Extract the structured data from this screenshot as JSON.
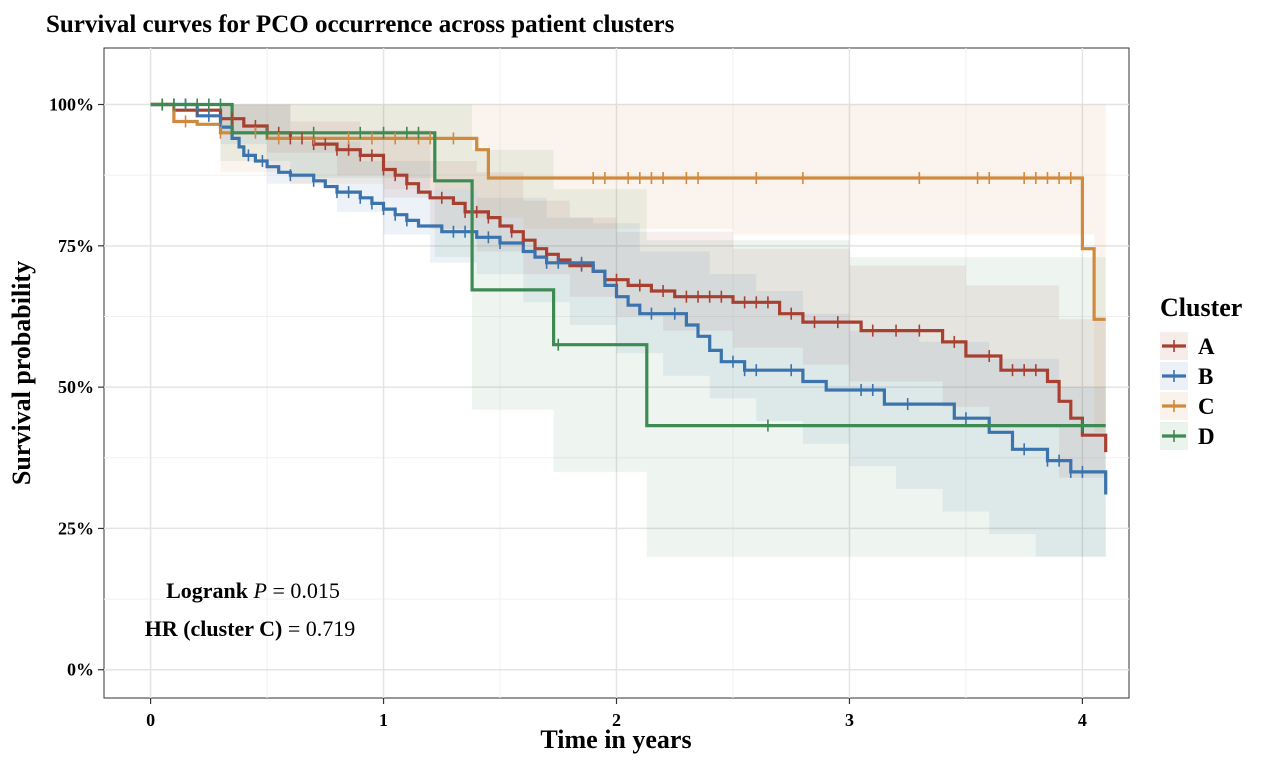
{
  "chart_data": {
    "type": "line",
    "subtype": "kaplan-meier step",
    "title": "Survival curves for PCO occurrence across patient clusters",
    "xlabel": "Time in years",
    "ylabel": "Survival probability",
    "xlim": [
      -0.2,
      4.2
    ],
    "ylim": [
      -0.05,
      1.1
    ],
    "x_ticks": [
      0,
      1,
      2,
      3,
      4
    ],
    "x_tick_labels": [
      "0",
      "1",
      "2",
      "3",
      "4"
    ],
    "y_ticks": [
      0,
      0.25,
      0.5,
      0.75,
      1.0
    ],
    "y_tick_labels": [
      "0%",
      "25%",
      "50%",
      "75%",
      "100%"
    ],
    "grid": true,
    "legend": {
      "title": "Cluster",
      "position": "right"
    },
    "annotations": {
      "logrank_prefix": "Logrank ",
      "logrank_p": "P",
      "logrank_value": " = 0.015",
      "hr_prefix": "HR (cluster C)",
      "hr_value": " = 0.719"
    },
    "series": [
      {
        "name": "A",
        "color": "#a84032",
        "steps": [
          [
            0,
            1.0
          ],
          [
            0.1,
            0.99
          ],
          [
            0.3,
            0.975
          ],
          [
            0.4,
            0.962
          ],
          [
            0.5,
            0.95
          ],
          [
            0.6,
            0.94
          ],
          [
            0.7,
            0.93
          ],
          [
            0.8,
            0.92
          ],
          [
            0.9,
            0.91
          ],
          [
            1.0,
            0.885
          ],
          [
            1.05,
            0.875
          ],
          [
            1.1,
            0.86
          ],
          [
            1.15,
            0.845
          ],
          [
            1.2,
            0.835
          ],
          [
            1.3,
            0.825
          ],
          [
            1.35,
            0.81
          ],
          [
            1.45,
            0.8
          ],
          [
            1.5,
            0.785
          ],
          [
            1.55,
            0.775
          ],
          [
            1.6,
            0.76
          ],
          [
            1.65,
            0.745
          ],
          [
            1.7,
            0.735
          ],
          [
            1.75,
            0.725
          ],
          [
            1.8,
            0.715
          ],
          [
            1.9,
            0.705
          ],
          [
            1.95,
            0.69
          ],
          [
            2.05,
            0.68
          ],
          [
            2.15,
            0.67
          ],
          [
            2.25,
            0.66
          ],
          [
            2.5,
            0.65
          ],
          [
            2.7,
            0.63
          ],
          [
            2.8,
            0.615
          ],
          [
            3.05,
            0.6
          ],
          [
            3.4,
            0.58
          ],
          [
            3.5,
            0.555
          ],
          [
            3.65,
            0.53
          ],
          [
            3.85,
            0.51
          ],
          [
            3.9,
            0.475
          ],
          [
            3.95,
            0.445
          ],
          [
            4.0,
            0.415
          ],
          [
            4.1,
            0.385
          ]
        ],
        "band_lower": [
          [
            0,
            1.0
          ],
          [
            0.3,
            0.95
          ],
          [
            0.5,
            0.915
          ],
          [
            0.8,
            0.875
          ],
          [
            1.0,
            0.835
          ],
          [
            1.2,
            0.78
          ],
          [
            1.4,
            0.74
          ],
          [
            1.6,
            0.7
          ],
          [
            1.8,
            0.66
          ],
          [
            2.0,
            0.625
          ],
          [
            2.2,
            0.6
          ],
          [
            2.5,
            0.57
          ],
          [
            2.8,
            0.54
          ],
          [
            3.0,
            0.51
          ],
          [
            3.4,
            0.465
          ],
          [
            3.6,
            0.43
          ],
          [
            3.9,
            0.34
          ],
          [
            4.1,
            0.28
          ]
        ],
        "band_upper": [
          [
            0,
            1.0
          ],
          [
            0.3,
            1.0
          ],
          [
            0.6,
            0.97
          ],
          [
            0.9,
            0.955
          ],
          [
            1.2,
            0.9
          ],
          [
            1.4,
            0.88
          ],
          [
            1.6,
            0.83
          ],
          [
            1.8,
            0.8
          ],
          [
            2.0,
            0.775
          ],
          [
            2.5,
            0.745
          ],
          [
            3.0,
            0.715
          ],
          [
            3.5,
            0.68
          ],
          [
            3.9,
            0.62
          ],
          [
            4.1,
            0.55
          ]
        ],
        "censor_times": [
          0.05,
          0.2,
          0.35,
          0.45,
          0.55,
          0.6,
          0.65,
          0.7,
          0.75,
          0.8,
          0.85,
          0.9,
          0.95,
          1.0,
          1.05,
          1.1,
          1.25,
          1.35,
          1.4,
          1.45,
          1.55,
          1.6,
          1.7,
          1.85,
          2.0,
          2.1,
          2.2,
          2.3,
          2.35,
          2.4,
          2.45,
          2.55,
          2.6,
          2.65,
          2.75,
          2.85,
          2.95,
          3.1,
          3.2,
          3.3,
          3.45,
          3.6,
          3.7,
          3.75,
          3.8
        ]
      },
      {
        "name": "B",
        "color": "#3a73ad",
        "steps": [
          [
            0,
            1.0
          ],
          [
            0.2,
            0.98
          ],
          [
            0.3,
            0.96
          ],
          [
            0.35,
            0.94
          ],
          [
            0.38,
            0.925
          ],
          [
            0.4,
            0.91
          ],
          [
            0.45,
            0.9
          ],
          [
            0.5,
            0.89
          ],
          [
            0.55,
            0.88
          ],
          [
            0.6,
            0.875
          ],
          [
            0.7,
            0.865
          ],
          [
            0.75,
            0.855
          ],
          [
            0.8,
            0.845
          ],
          [
            0.9,
            0.835
          ],
          [
            0.95,
            0.825
          ],
          [
            1.0,
            0.815
          ],
          [
            1.05,
            0.805
          ],
          [
            1.1,
            0.795
          ],
          [
            1.15,
            0.785
          ],
          [
            1.25,
            0.775
          ],
          [
            1.4,
            0.765
          ],
          [
            1.5,
            0.755
          ],
          [
            1.6,
            0.74
          ],
          [
            1.65,
            0.73
          ],
          [
            1.7,
            0.72
          ],
          [
            1.9,
            0.705
          ],
          [
            1.95,
            0.68
          ],
          [
            2.0,
            0.66
          ],
          [
            2.05,
            0.645
          ],
          [
            2.1,
            0.63
          ],
          [
            2.3,
            0.61
          ],
          [
            2.35,
            0.59
          ],
          [
            2.4,
            0.565
          ],
          [
            2.45,
            0.545
          ],
          [
            2.55,
            0.53
          ],
          [
            2.8,
            0.51
          ],
          [
            2.9,
            0.495
          ],
          [
            3.15,
            0.47
          ],
          [
            3.45,
            0.445
          ],
          [
            3.6,
            0.42
          ],
          [
            3.7,
            0.39
          ],
          [
            3.85,
            0.37
          ],
          [
            3.95,
            0.35
          ],
          [
            4.1,
            0.31
          ]
        ],
        "band_lower": [
          [
            0,
            1.0
          ],
          [
            0.3,
            0.93
          ],
          [
            0.5,
            0.86
          ],
          [
            0.8,
            0.81
          ],
          [
            1.0,
            0.77
          ],
          [
            1.2,
            0.72
          ],
          [
            1.4,
            0.7
          ],
          [
            1.6,
            0.65
          ],
          [
            1.8,
            0.61
          ],
          [
            2.0,
            0.56
          ],
          [
            2.2,
            0.52
          ],
          [
            2.4,
            0.48
          ],
          [
            2.6,
            0.44
          ],
          [
            2.8,
            0.4
          ],
          [
            3.0,
            0.36
          ],
          [
            3.2,
            0.32
          ],
          [
            3.4,
            0.28
          ],
          [
            3.6,
            0.24
          ],
          [
            3.8,
            0.2
          ],
          [
            4.1,
            0.18
          ]
        ],
        "band_upper": [
          [
            0,
            1.0
          ],
          [
            0.3,
            1.0
          ],
          [
            0.6,
            0.935
          ],
          [
            0.9,
            0.9
          ],
          [
            1.2,
            0.85
          ],
          [
            1.4,
            0.835
          ],
          [
            1.7,
            0.8
          ],
          [
            1.9,
            0.79
          ],
          [
            2.1,
            0.74
          ],
          [
            2.4,
            0.7
          ],
          [
            2.6,
            0.67
          ],
          [
            2.8,
            0.63
          ],
          [
            3.0,
            0.6
          ],
          [
            3.3,
            0.58
          ],
          [
            3.6,
            0.55
          ],
          [
            3.9,
            0.5
          ],
          [
            4.1,
            0.48
          ]
        ],
        "censor_times": [
          0.1,
          0.15,
          0.25,
          0.3,
          0.42,
          0.48,
          0.6,
          0.7,
          0.8,
          0.85,
          0.9,
          0.95,
          1.0,
          1.05,
          1.1,
          1.3,
          1.35,
          1.45,
          1.5,
          1.7,
          1.75,
          1.85,
          2.15,
          2.25,
          2.5,
          2.55,
          2.6,
          2.75,
          3.05,
          3.1,
          3.25,
          3.5,
          3.75,
          3.85,
          3.9,
          3.95,
          4.0
        ]
      },
      {
        "name": "C",
        "color": "#d08a3e",
        "steps": [
          [
            0,
            1.0
          ],
          [
            0.1,
            0.97
          ],
          [
            0.2,
            0.965
          ],
          [
            0.3,
            0.95
          ],
          [
            0.5,
            0.94
          ],
          [
            1.4,
            0.92
          ],
          [
            1.45,
            0.87
          ],
          [
            4.0,
            0.745
          ],
          [
            4.05,
            0.62
          ],
          [
            4.1,
            0.62
          ]
        ],
        "band_lower": [
          [
            0,
            1.0
          ],
          [
            0.3,
            0.88
          ],
          [
            0.6,
            0.86
          ],
          [
            1.0,
            0.85
          ],
          [
            1.4,
            0.8
          ],
          [
            1.6,
            0.78
          ],
          [
            2.5,
            0.77
          ],
          [
            4.0,
            0.77
          ],
          [
            4.05,
            0.42
          ],
          [
            4.1,
            0.32
          ]
        ],
        "band_upper": [
          [
            0,
            1.0
          ],
          [
            4.0,
            1.0
          ],
          [
            4.1,
            1.0
          ]
        ],
        "censor_times": [
          0.05,
          0.15,
          0.3,
          0.45,
          0.55,
          0.7,
          0.85,
          0.95,
          1.05,
          1.15,
          1.2,
          1.3,
          1.9,
          1.95,
          2.05,
          2.1,
          2.15,
          2.2,
          2.3,
          2.35,
          2.6,
          2.8,
          3.3,
          3.55,
          3.6,
          3.75,
          3.8,
          3.85,
          3.9,
          3.95
        ]
      },
      {
        "name": "D",
        "color": "#3d8a53",
        "steps": [
          [
            0,
            1.0
          ],
          [
            0.35,
            0.95
          ],
          [
            1.22,
            0.865
          ],
          [
            1.38,
            0.672
          ],
          [
            1.73,
            0.575
          ],
          [
            2.13,
            0.432
          ],
          [
            4.1,
            0.432
          ]
        ],
        "band_lower": [
          [
            0,
            1.0
          ],
          [
            0.3,
            0.9
          ],
          [
            0.6,
            0.87
          ],
          [
            1.22,
            0.73
          ],
          [
            1.38,
            0.46
          ],
          [
            1.73,
            0.35
          ],
          [
            2.13,
            0.2
          ],
          [
            4.1,
            0.2
          ]
        ],
        "band_upper": [
          [
            0,
            1.0
          ],
          [
            1.22,
            1.0
          ],
          [
            1.38,
            0.92
          ],
          [
            1.73,
            0.85
          ],
          [
            2.13,
            0.76
          ],
          [
            3.0,
            0.73
          ],
          [
            4.1,
            0.73
          ]
        ],
        "censor_times": [
          0.05,
          0.1,
          0.15,
          0.2,
          0.25,
          0.3,
          0.5,
          0.7,
          0.9,
          1.0,
          1.1,
          1.15,
          1.75,
          2.65,
          4.0
        ]
      }
    ]
  }
}
